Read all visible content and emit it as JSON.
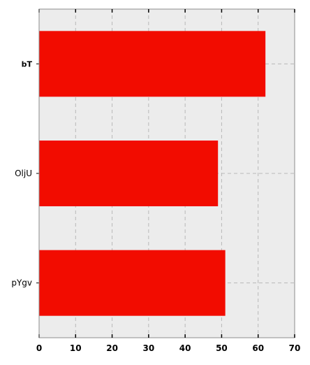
{
  "chart_data": {
    "type": "bar",
    "orientation": "horizontal",
    "categories": [
      "bT",
      "OljU",
      "pYgv"
    ],
    "values": [
      62,
      49,
      51
    ],
    "xlim": [
      0,
      70
    ],
    "x_ticks": [
      0,
      10,
      20,
      30,
      40,
      50,
      60,
      70
    ],
    "grid": true,
    "bar_color": "#f20c00",
    "plot_background": "#ececec",
    "grid_color": "#b8b8b8"
  }
}
